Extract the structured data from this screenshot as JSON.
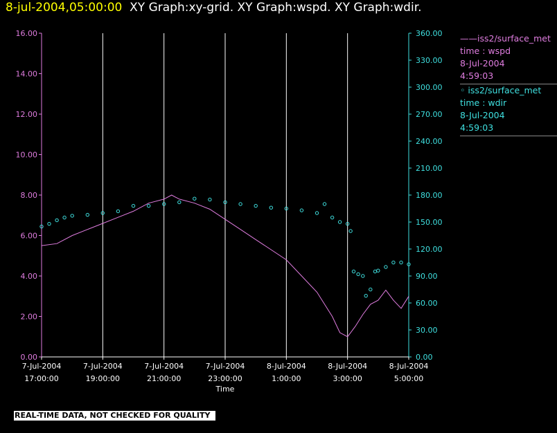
{
  "header": {
    "timestamp": "8-jul-2004,05:00:00",
    "titles": "XY Graph:xy-grid.  XY Graph:wspd.  XY Graph:wdir."
  },
  "legend": {
    "series1": {
      "symbol": "——",
      "source": "iss2/surface_met",
      "var": "time : wspd",
      "date": "8-Jul-2004",
      "time": "4:59:03"
    },
    "series2": {
      "symbol": "◦ ",
      "source": "iss2/surface_met",
      "var": "time : wdir",
      "date": "8-Jul-2004",
      "time": "4:59:03"
    }
  },
  "banner": "REAL-TIME DATA, NOT CHECKED FOR QUALITY",
  "colors": {
    "wspd": "#e07de0",
    "wdir": "#3fe0e0",
    "grid": "#ffffff",
    "background": "#000000"
  },
  "chart_data": {
    "type": "line",
    "xlabel": "Time",
    "x_ticks": [
      {
        "hour": 17,
        "date": "7-Jul-2004",
        "time": "17:00:00"
      },
      {
        "hour": 19,
        "date": "7-Jul-2004",
        "time": "19:00:00"
      },
      {
        "hour": 21,
        "date": "7-Jul-2004",
        "time": "21:00:00"
      },
      {
        "hour": 23,
        "date": "7-Jul-2004",
        "time": "23:00:00"
      },
      {
        "hour": 25,
        "date": "8-Jul-2004",
        "time": "1:00:00"
      },
      {
        "hour": 27,
        "date": "8-Jul-2004",
        "time": "3:00:00"
      },
      {
        "hour": 29,
        "date": "8-Jul-2004",
        "time": "5:00:00"
      }
    ],
    "xlim_hours": [
      17,
      29
    ],
    "left_axis": {
      "variable": "wspd",
      "ylim": [
        0,
        16
      ],
      "ticks": [
        "0.00",
        "2.00",
        "4.00",
        "6.00",
        "8.00",
        "10.00",
        "12.00",
        "14.00",
        "16.00"
      ]
    },
    "right_axis": {
      "variable": "wdir",
      "ylim": [
        0,
        360
      ],
      "ticks": [
        "0.00",
        "30.00",
        "60.00",
        "90.00",
        "120.00",
        "150.00",
        "180.00",
        "210.00",
        "240.00",
        "270.00",
        "300.00",
        "330.00",
        "360.00"
      ]
    },
    "grid": "vertical lines at x ticks",
    "series": [
      {
        "name": "wspd",
        "style": "line",
        "x": [
          17.0,
          17.5,
          18.0,
          18.5,
          19.0,
          19.5,
          20.0,
          20.5,
          21.0,
          21.25,
          21.5,
          22.0,
          22.5,
          23.0,
          23.5,
          24.0,
          24.5,
          25.0,
          25.5,
          26.0,
          26.5,
          26.75,
          27.0,
          27.25,
          27.5,
          27.75,
          28.0,
          28.25,
          28.5,
          28.75,
          29.0
        ],
        "y": [
          5.5,
          5.6,
          6.0,
          6.3,
          6.6,
          6.9,
          7.2,
          7.6,
          7.8,
          8.0,
          7.8,
          7.6,
          7.3,
          6.8,
          6.3,
          5.8,
          5.3,
          4.8,
          4.0,
          3.2,
          2.0,
          1.2,
          1.0,
          1.5,
          2.1,
          2.6,
          2.8,
          3.3,
          2.8,
          2.4,
          3.0
        ]
      },
      {
        "name": "wdir",
        "style": "circles",
        "x": [
          17.0,
          17.25,
          17.5,
          17.75,
          18.0,
          18.5,
          19.0,
          19.5,
          20.0,
          20.5,
          21.0,
          21.5,
          22.0,
          22.5,
          23.0,
          23.5,
          24.0,
          24.5,
          25.0,
          25.5,
          26.0,
          26.25,
          26.5,
          26.75,
          27.0,
          27.1,
          27.2,
          27.35,
          27.5,
          27.6,
          27.75,
          27.9,
          28.0,
          28.25,
          28.5,
          28.75,
          29.0
        ],
        "y": [
          145,
          148,
          152,
          155,
          157,
          158,
          160,
          162,
          168,
          168,
          170,
          172,
          176,
          175,
          172,
          170,
          168,
          166,
          165,
          163,
          160,
          170,
          155,
          150,
          148,
          140,
          95,
          92,
          90,
          68,
          75,
          95,
          96,
          100,
          105,
          105,
          103
        ]
      }
    ]
  }
}
